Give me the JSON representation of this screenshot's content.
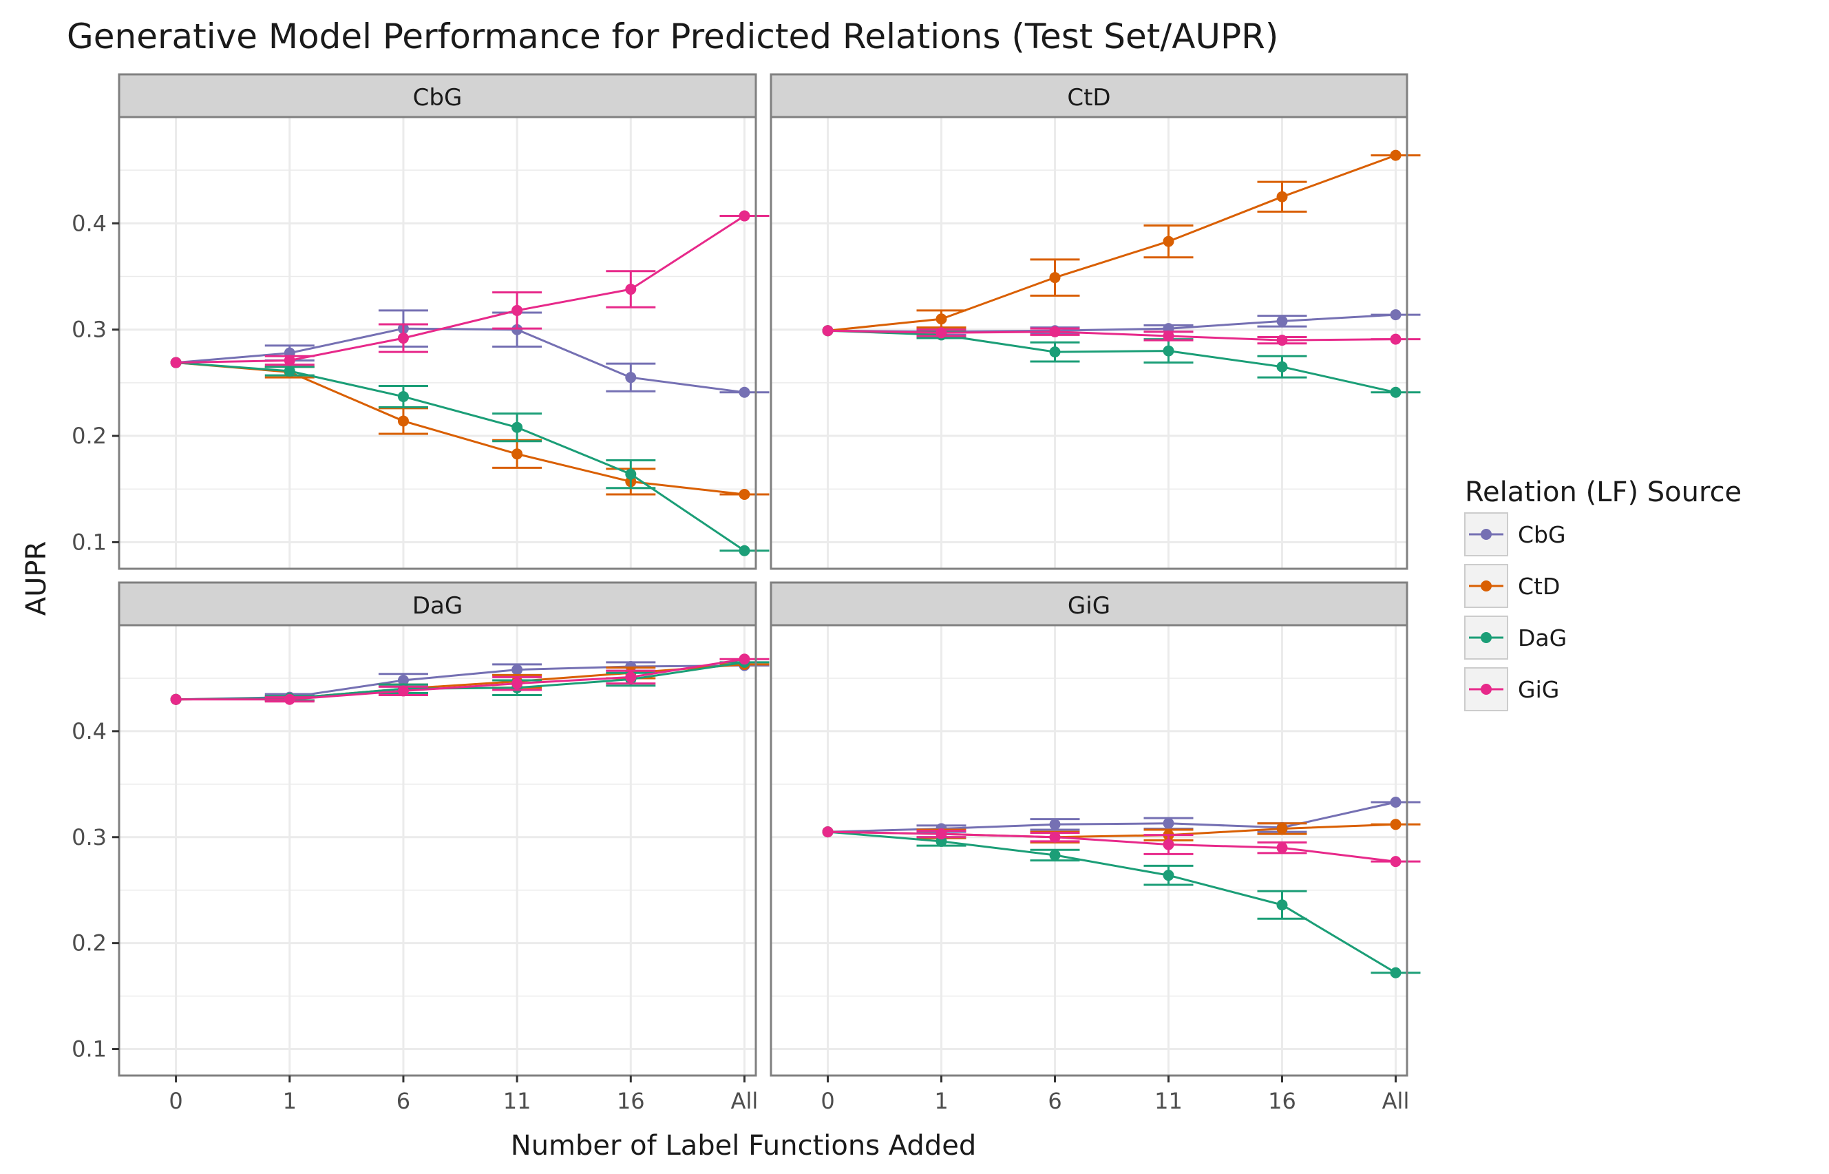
{
  "chart_data": {
    "type": "line",
    "title": "Generative Model Performance for Predicted Relations (Test Set/AUPR)",
    "xlabel": "Number of Label Functions Added",
    "ylabel": "AUPR",
    "categories": [
      "0",
      "1",
      "6",
      "11",
      "16",
      "All"
    ],
    "yticks": [
      "0.1",
      "0.2",
      "0.3",
      "0.4"
    ],
    "ylim": [
      0.075,
      0.5
    ],
    "grid": true,
    "legend": {
      "title": "Relation (LF) Source",
      "position": "right",
      "entries": [
        "CbG",
        "CtD",
        "DaG",
        "GiG"
      ]
    },
    "colors": {
      "CbG": "#7570b3",
      "CtD": "#d95f02",
      "DaG": "#1b9e77",
      "GiG": "#e7298a"
    },
    "panels": [
      {
        "title": "CbG",
        "series": [
          {
            "name": "CbG",
            "values": [
              0.269,
              0.278,
              0.301,
              0.3,
              0.255,
              0.241
            ],
            "err": [
              0.0,
              0.007,
              0.017,
              0.016,
              0.013,
              0.0
            ]
          },
          {
            "name": "CtD",
            "values": [
              0.269,
              0.26,
              0.214,
              0.183,
              0.157,
              0.145
            ],
            "err": [
              0.0,
              0.005,
              0.012,
              0.013,
              0.012,
              0.0
            ]
          },
          {
            "name": "DaG",
            "values": [
              0.269,
              0.261,
              0.237,
              0.208,
              0.164,
              0.092
            ],
            "err": [
              0.0,
              0.004,
              0.01,
              0.013,
              0.013,
              0.0
            ]
          },
          {
            "name": "GiG",
            "values": [
              0.269,
              0.271,
              0.292,
              0.318,
              0.338,
              0.407
            ],
            "err": [
              0.0,
              0.004,
              0.013,
              0.017,
              0.017,
              0.0
            ]
          }
        ]
      },
      {
        "title": "CtD",
        "series": [
          {
            "name": "CbG",
            "values": [
              0.299,
              0.298,
              0.299,
              0.301,
              0.308,
              0.314
            ],
            "err": [
              0.0,
              0.003,
              0.003,
              0.003,
              0.005,
              0.0
            ]
          },
          {
            "name": "CtD",
            "values": [
              0.299,
              0.31,
              0.349,
              0.383,
              0.425,
              0.464
            ],
            "err": [
              0.0,
              0.008,
              0.017,
              0.015,
              0.014,
              0.0
            ]
          },
          {
            "name": "DaG",
            "values": [
              0.299,
              0.295,
              0.279,
              0.28,
              0.265,
              0.241
            ],
            "err": [
              0.0,
              0.003,
              0.009,
              0.011,
              0.01,
              0.0
            ]
          },
          {
            "name": "GiG",
            "values": [
              0.299,
              0.297,
              0.298,
              0.294,
              0.29,
              0.291
            ],
            "err": [
              0.0,
              0.003,
              0.003,
              0.004,
              0.003,
              0.0
            ]
          }
        ]
      },
      {
        "title": "DaG",
        "series": [
          {
            "name": "CbG",
            "values": [
              0.43,
              0.432,
              0.448,
              0.458,
              0.461,
              0.462
            ],
            "err": [
              0.0,
              0.003,
              0.006,
              0.005,
              0.004,
              0.0
            ]
          },
          {
            "name": "CtD",
            "values": [
              0.43,
              0.431,
              0.44,
              0.447,
              0.455,
              0.463
            ],
            "err": [
              0.0,
              0.002,
              0.004,
              0.006,
              0.005,
              0.0
            ]
          },
          {
            "name": "DaG",
            "values": [
              0.43,
              0.431,
              0.44,
              0.441,
              0.449,
              0.465
            ],
            "err": [
              0.0,
              0.002,
              0.004,
              0.007,
              0.006,
              0.0
            ]
          },
          {
            "name": "GiG",
            "values": [
              0.43,
              0.43,
              0.438,
              0.445,
              0.451,
              0.468
            ],
            "err": [
              0.0,
              0.002,
              0.004,
              0.006,
              0.006,
              0.0
            ]
          }
        ]
      },
      {
        "title": "GiG",
        "series": [
          {
            "name": "CbG",
            "values": [
              0.305,
              0.308,
              0.312,
              0.313,
              0.309,
              0.333
            ],
            "err": [
              0.0,
              0.003,
              0.005,
              0.005,
              0.004,
              0.0
            ]
          },
          {
            "name": "CtD",
            "values": [
              0.305,
              0.303,
              0.3,
              0.302,
              0.308,
              0.312
            ],
            "err": [
              0.0,
              0.004,
              0.005,
              0.005,
              0.005,
              0.0
            ]
          },
          {
            "name": "DaG",
            "values": [
              0.305,
              0.296,
              0.283,
              0.264,
              0.236,
              0.172
            ],
            "err": [
              0.0,
              0.004,
              0.005,
              0.009,
              0.013,
              0.0
            ]
          },
          {
            "name": "GiG",
            "values": [
              0.305,
              0.303,
              0.3,
              0.293,
              0.29,
              0.277
            ],
            "err": [
              0.0,
              0.003,
              0.004,
              0.009,
              0.005,
              0.0
            ]
          }
        ]
      }
    ]
  }
}
